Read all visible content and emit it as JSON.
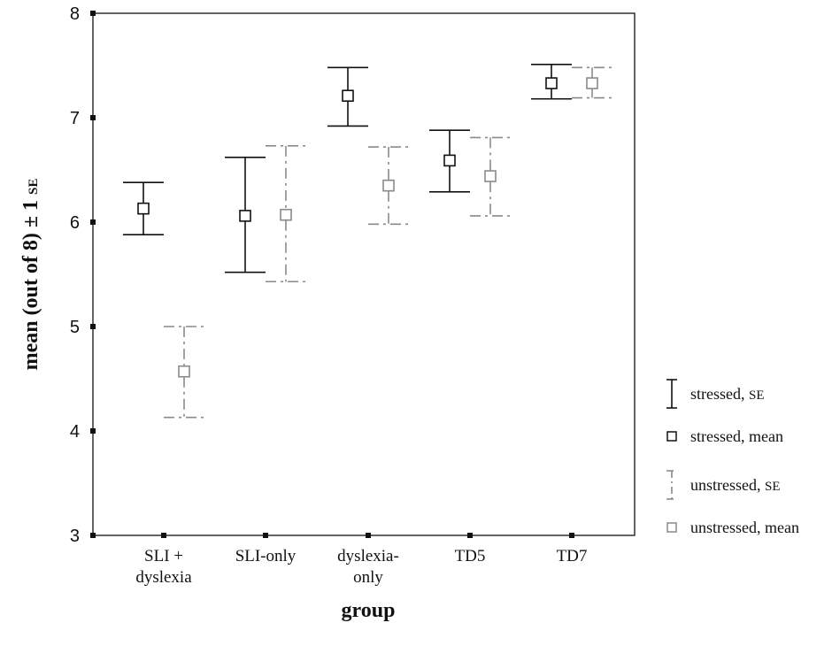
{
  "chart_data": {
    "type": "scatter",
    "xlabel": "group",
    "ylabel_main": "mean (out of 8) ± 1 ",
    "ylabel_se": "SE",
    "ylim": [
      3,
      8
    ],
    "yticks": [
      "3",
      "4",
      "5",
      "6",
      "7",
      "8"
    ],
    "categories": [
      {
        "lines": [
          "SLI +",
          "dyslexia"
        ]
      },
      {
        "lines": [
          "SLI-only"
        ]
      },
      {
        "lines": [
          "dyslexia-",
          "only"
        ]
      },
      {
        "lines": [
          "TD5"
        ]
      },
      {
        "lines": [
          "TD7"
        ]
      }
    ],
    "series": [
      {
        "key": "stressed",
        "style": "solid",
        "color": "#111111",
        "mean": [
          6.13,
          6.06,
          7.21,
          6.59,
          7.33
        ],
        "se_low": [
          5.88,
          5.52,
          6.92,
          6.29,
          7.18
        ],
        "se_high": [
          6.38,
          6.62,
          7.48,
          6.88,
          7.51
        ]
      },
      {
        "key": "unstressed",
        "style": "dashdot",
        "color": "#8a8a8a",
        "mean": [
          4.57,
          6.07,
          6.35,
          6.44,
          7.33
        ],
        "se_low": [
          4.13,
          5.43,
          5.98,
          6.06,
          7.19
        ],
        "se_high": [
          5.0,
          6.73,
          6.72,
          6.81,
          7.48
        ]
      }
    ],
    "legend": {
      "position": "right",
      "items": [
        {
          "glyph": "errorbar",
          "series": 0,
          "label": "stressed, ",
          "label_sc": "SE"
        },
        {
          "glyph": "marker",
          "series": 0,
          "label": "stressed, mean",
          "label_sc": ""
        },
        {
          "glyph": "errorbar",
          "series": 1,
          "label": "unstressed, ",
          "label_sc": "SE"
        },
        {
          "glyph": "marker",
          "series": 1,
          "label": "unstressed, mean",
          "label_sc": ""
        }
      ]
    },
    "grid": false
  }
}
